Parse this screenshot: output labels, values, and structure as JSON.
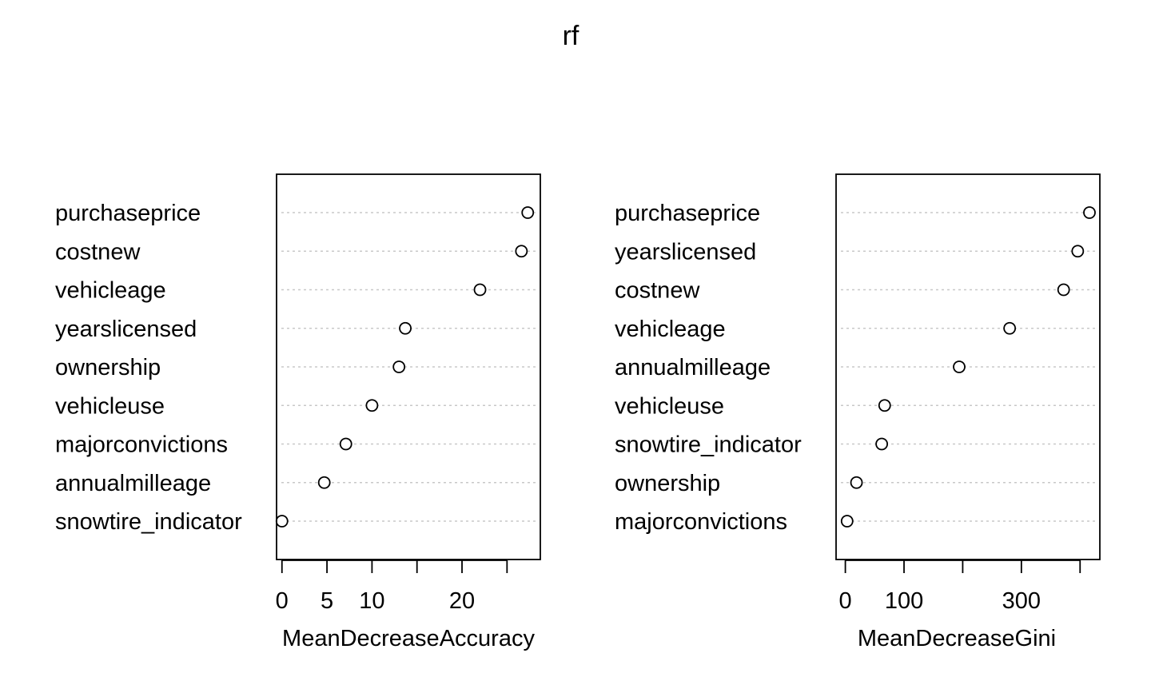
{
  "title": "rf",
  "chart_data": [
    {
      "type": "scatter",
      "style": "dotchart",
      "xlabel": "MeanDecreaseAccuracy",
      "ylabel": "",
      "xlim": [
        -0.6,
        28.7
      ],
      "xticks": [
        0,
        5,
        10,
        15,
        20,
        25
      ],
      "xtick_labels": [
        "0",
        "5",
        "10",
        "",
        "20",
        ""
      ],
      "grid": "dotted horizontal",
      "categories": [
        "purchaseprice",
        "costnew",
        "vehicleage",
        "yearslicensed",
        "ownership",
        "vehicleuse",
        "majorconvictions",
        "annualmilleage",
        "snowtire_indicator"
      ],
      "values": [
        27.3,
        26.6,
        22.0,
        13.7,
        13.0,
        10.0,
        7.1,
        4.7,
        0.0
      ]
    },
    {
      "type": "scatter",
      "style": "dotchart",
      "xlabel": "MeanDecreaseGini",
      "ylabel": "",
      "xlim": [
        -15.8,
        433.7
      ],
      "xticks": [
        0,
        100,
        200,
        300,
        400
      ],
      "xtick_labels": [
        "0",
        "100",
        "",
        "300",
        ""
      ],
      "grid": "dotted horizontal",
      "categories": [
        "purchaseprice",
        "yearslicensed",
        "costnew",
        "vehicleage",
        "annualmilleage",
        "vehicleuse",
        "snowtire_indicator",
        "ownership",
        "majorconvictions"
      ],
      "values": [
        416,
        396,
        372,
        280,
        194,
        67,
        62,
        19,
        3
      ]
    }
  ]
}
